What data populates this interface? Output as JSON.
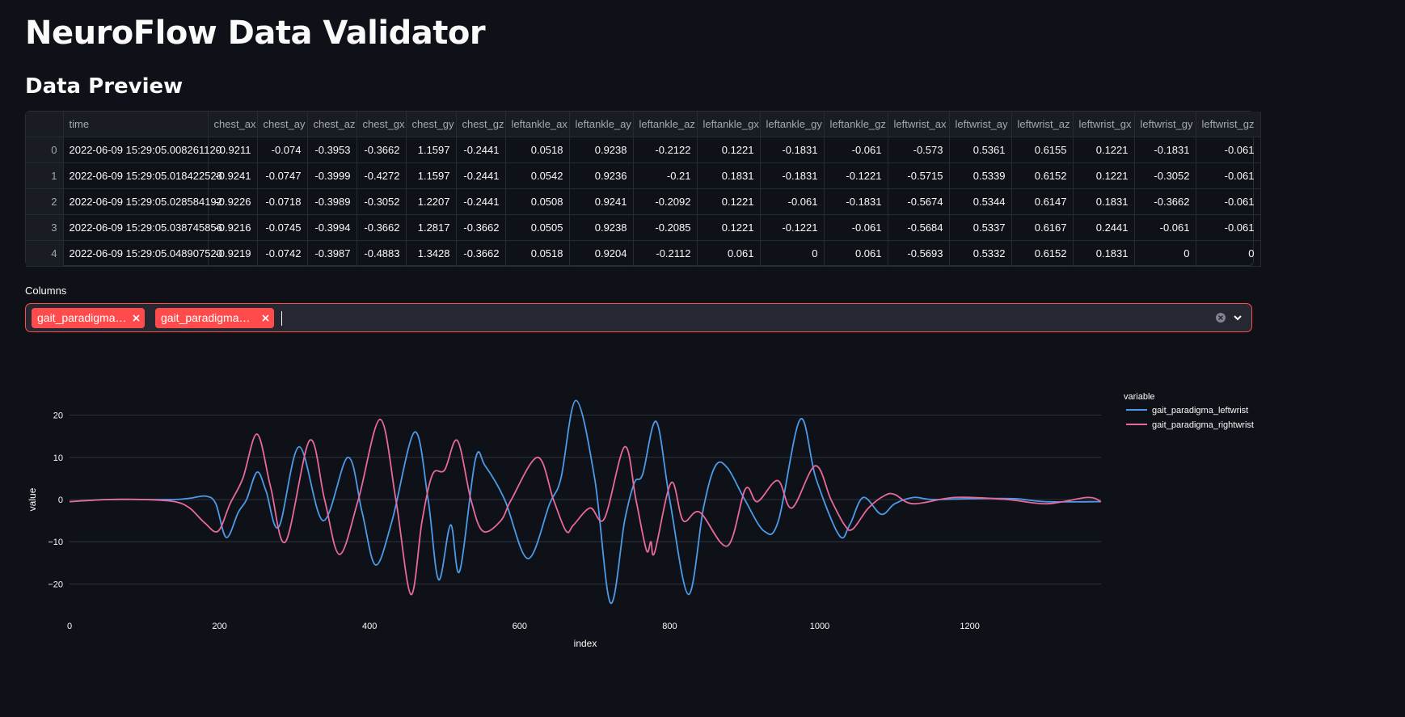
{
  "header": {
    "title": "NeuroFlow Data Validator",
    "subtitle": "Data Preview"
  },
  "table": {
    "columns": [
      "time",
      "chest_ax",
      "chest_ay",
      "chest_az",
      "chest_gx",
      "chest_gy",
      "chest_gz",
      "leftankle_ax",
      "leftankle_ay",
      "leftankle_az",
      "leftankle_gx",
      "leftankle_gy",
      "leftankle_gz",
      "leftwrist_ax",
      "leftwrist_ay",
      "leftwrist_az",
      "leftwrist_gx",
      "leftwrist_gy",
      "leftwrist_gz"
    ],
    "rows": [
      [
        "0",
        "2022-06-09 15:29:05.008261120",
        "-0.9211",
        "-0.074",
        "-0.3953",
        "-0.3662",
        "1.1597",
        "-0.2441",
        "0.0518",
        "0.9238",
        "-0.2122",
        "0.1221",
        "-0.1831",
        "-0.061",
        "-0.573",
        "0.5361",
        "0.6155",
        "0.1221",
        "-0.1831",
        "-0.061"
      ],
      [
        "1",
        "2022-06-09 15:29:05.018422528",
        "-0.9241",
        "-0.0747",
        "-0.3999",
        "-0.4272",
        "1.1597",
        "-0.2441",
        "0.0542",
        "0.9236",
        "-0.21",
        "0.1831",
        "-0.1831",
        "-0.1221",
        "-0.5715",
        "0.5339",
        "0.6152",
        "0.1221",
        "-0.3052",
        "-0.061"
      ],
      [
        "2",
        "2022-06-09 15:29:05.028584192",
        "-0.9226",
        "-0.0718",
        "-0.3989",
        "-0.3052",
        "1.2207",
        "-0.2441",
        "0.0508",
        "0.9241",
        "-0.2092",
        "0.1221",
        "-0.061",
        "-0.1831",
        "-0.5674",
        "0.5344",
        "0.6147",
        "0.1831",
        "-0.3662",
        "-0.061"
      ],
      [
        "3",
        "2022-06-09 15:29:05.038745856",
        "-0.9216",
        "-0.0745",
        "-0.3994",
        "-0.3662",
        "1.2817",
        "-0.3662",
        "0.0505",
        "0.9238",
        "-0.2085",
        "0.1221",
        "-0.1221",
        "-0.061",
        "-0.5684",
        "0.5337",
        "0.6167",
        "0.2441",
        "-0.061",
        "-0.061"
      ],
      [
        "4",
        "2022-06-09 15:29:05.048907520",
        "-0.9219",
        "-0.0742",
        "-0.3987",
        "-0.4883",
        "1.3428",
        "-0.3662",
        "0.0518",
        "0.9204",
        "-0.2112",
        "0.061",
        "0",
        "0.061",
        "-0.5693",
        "0.5332",
        "0.6152",
        "0.1831",
        "0",
        "0"
      ]
    ]
  },
  "multiselect": {
    "label": "Columns",
    "selected": [
      "gait_paradigma…",
      "gait_paradigma…"
    ]
  },
  "chart_data": {
    "type": "line",
    "x_label": "index",
    "y_label": "value",
    "legend_title": "variable",
    "legend": "right",
    "grid": true,
    "xlim": [
      0,
      1375
    ],
    "xticks": [
      0,
      200,
      400,
      600,
      800,
      1000,
      1200
    ],
    "ylim": [
      -25.3,
      25.1
    ],
    "yticks": [
      {
        "value": -20,
        "label": "−20"
      },
      {
        "value": -10,
        "label": "−10"
      },
      0,
      10,
      20
    ],
    "series": [
      {
        "name": "gait_paradigma_leftwrist",
        "color": "#4c9be8",
        "x": [
          0,
          50,
          100,
          140,
          160,
          182,
          195,
          209,
          225,
          236,
          250,
          262,
          279,
          306,
          338,
          371,
          390,
          408,
          430,
          460,
          478,
          492,
          508,
          520,
          541,
          554,
          580,
          611,
          640,
          655,
          675,
          700,
          721,
          740,
          753,
          764,
          782,
          800,
          825,
          845,
          861,
          877,
          900,
          926,
          945,
          974,
          995,
          1026,
          1040,
          1058,
          1082,
          1100,
          1125,
          1150,
          1200,
          1260,
          1300,
          1375
        ],
        "values": [
          -0.5,
          0,
          0,
          0,
          0.3,
          0.8,
          -1,
          -9,
          -3,
          0,
          6.5,
          2,
          -6.5,
          12.5,
          -5,
          10,
          -3,
          -15.5,
          -5,
          16,
          0,
          -19,
          -6,
          -17,
          9.5,
          8,
          0,
          -14,
          -1,
          5,
          23.5,
          5,
          -24.5,
          -5,
          4,
          6,
          18.5,
          0,
          -22.5,
          -2,
          8,
          7.5,
          0,
          -7.5,
          -5,
          19,
          5,
          -8.5,
          -6,
          0.5,
          -3.5,
          -1,
          0.5,
          0,
          0.2,
          0.2,
          -0.5,
          -0.5
        ]
      },
      {
        "name": "gait_paradigma_rightwrist",
        "color": "#e8699a",
        "x": [
          0,
          50,
          100,
          140,
          160,
          180,
          198,
          214,
          231,
          250,
          268,
          288,
          320,
          340,
          360,
          385,
          414,
          435,
          455,
          470,
          484,
          500,
          517,
          535,
          551,
          575,
          589,
          624,
          645,
          662,
          672,
          694,
          713,
          740,
          755,
          769,
          775,
          780,
          802,
          818,
          840,
          877,
          901,
          917,
          944,
          963,
          994,
          1015,
          1033,
          1044,
          1065,
          1087,
          1100,
          1125,
          1180,
          1250,
          1303,
          1357,
          1375
        ],
        "values": [
          -0.5,
          0,
          0,
          -0.5,
          -2,
          -5.5,
          -7.5,
          -1,
          5,
          15.5,
          3,
          -10,
          14,
          0,
          -13,
          0,
          19,
          0,
          -22.5,
          -5,
          6,
          7,
          14,
          0,
          -7.5,
          -5,
          0,
          10,
          0,
          -7.5,
          -6,
          -2,
          -4.5,
          12.5,
          0,
          -12,
          -10,
          -12.5,
          4,
          -5,
          -3,
          -11,
          2.5,
          -0.5,
          4.5,
          -2,
          8,
          0,
          -6,
          -7,
          -2,
          1,
          1.2,
          -1,
          0.5,
          0,
          -1,
          0.5,
          -0.5
        ]
      }
    ]
  }
}
